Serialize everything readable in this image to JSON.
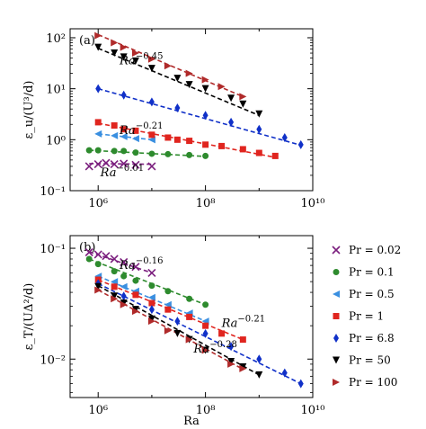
{
  "colors": {
    "Pr = 0.02": "#7b1f7e",
    "Pr = 0.1": "#2e8b2e",
    "Pr = 0.5": "#3a8fe0",
    "Pr = 1": "#e0251f",
    "Pr = 6.8": "#1030c8",
    "Pr = 50": "#000000",
    "Pr = 100": "#b02a2a"
  },
  "chart_data": [
    {
      "panel": "(a)",
      "type": "scatter",
      "ylabel": "ε_u/(U³/d)",
      "xlabel": "",
      "xscale": "log",
      "yscale": "log",
      "xlim": [
        300000,
        10000000000
      ],
      "ylim": [
        0.1,
        150
      ],
      "x_ticks": [
        "10⁶",
        "10⁸",
        "10¹⁰"
      ],
      "y_ticks": [
        "10⁻¹",
        "10⁰",
        "10¹",
        "10²"
      ],
      "annotations": [
        {
          "base": "Ra",
          "exp": "−0.45",
          "x": 2500000,
          "y": 30
        },
        {
          "base": "Ra",
          "exp": "−0.21",
          "x": 2500000,
          "y": 1.3
        },
        {
          "base": "Ra",
          "exp": "−0.01",
          "x": 1100000,
          "y": 0.19
        }
      ],
      "series": [
        {
          "name": "Pr = 0.02",
          "marker": "x",
          "x": [
            680000,
            1000000,
            1400000,
            2000000,
            3000000,
            5000000,
            10000000
          ],
          "y": [
            0.3,
            0.33,
            0.35,
            0.33,
            0.34,
            0.32,
            0.3
          ]
        },
        {
          "name": "Pr = 0.1",
          "marker": "circle",
          "x": [
            680000,
            1000000,
            2000000,
            3000000,
            5000000,
            10000000,
            20000000,
            50000000,
            100000000
          ],
          "y": [
            0.62,
            0.62,
            0.6,
            0.6,
            0.56,
            0.53,
            0.52,
            0.5,
            0.48
          ]
        },
        {
          "name": "Pr = 0.5",
          "marker": "triangle-left",
          "x": [
            1000000,
            2000000,
            3000000,
            5000000,
            10000000
          ],
          "y": [
            1.3,
            1.2,
            1.15,
            1.05,
            1.0
          ]
        },
        {
          "name": "Pr = 1",
          "marker": "square",
          "x": [
            1000000,
            2000000,
            3000000,
            5000000,
            10000000,
            20000000,
            30000000,
            50000000,
            100000000,
            200000000,
            500000000,
            1000000000,
            2000000000
          ],
          "y": [
            2.2,
            1.9,
            1.6,
            1.5,
            1.25,
            1.1,
            1.0,
            0.95,
            0.8,
            0.75,
            0.65,
            0.55,
            0.48
          ]
        },
        {
          "name": "Pr = 6.8",
          "marker": "diamond",
          "x": [
            1000000,
            3000000,
            10000000,
            30000000,
            100000000,
            300000000,
            1000000000,
            3000000000,
            6000000000
          ],
          "y": [
            10,
            7.5,
            5.5,
            4.2,
            3.0,
            2.2,
            1.6,
            1.1,
            0.8
          ]
        },
        {
          "name": "Pr = 50",
          "marker": "triangle-down",
          "x": [
            1000000,
            2000000,
            3000000,
            5000000,
            10000000,
            30000000,
            50000000,
            100000000,
            300000000,
            500000000,
            1000000000
          ],
          "y": [
            65,
            50,
            42,
            35,
            25,
            16,
            12,
            10,
            6.5,
            5,
            3.2
          ]
        },
        {
          "name": "Pr = 100",
          "marker": "triangle-right",
          "x": [
            1000000,
            2000000,
            3000000,
            5000000,
            10000000,
            20000000,
            50000000,
            100000000,
            200000000,
            500000000
          ],
          "y": [
            110,
            80,
            65,
            50,
            38,
            28,
            20,
            15,
            11,
            7
          ]
        }
      ],
      "fit_lines": [
        {
          "series": "Pr = 0.02",
          "x": [
            680000,
            10000000
          ],
          "y": [
            0.34,
            0.33
          ]
        },
        {
          "series": "Pr = 0.1",
          "x": [
            680000,
            100000000
          ],
          "y": [
            0.62,
            0.47
          ]
        },
        {
          "series": "Pr = 0.5",
          "x": [
            1000000,
            10000000
          ],
          "y": [
            1.3,
            1.0
          ]
        },
        {
          "series": "Pr = 1",
          "x": [
            1000000,
            2000000000
          ],
          "y": [
            2.1,
            0.45
          ]
        },
        {
          "series": "Pr = 6.8",
          "x": [
            1000000,
            6000000000
          ],
          "y": [
            10,
            0.78
          ]
        },
        {
          "series": "Pr = 50",
          "x": [
            1000000,
            1000000000
          ],
          "y": [
            62,
            3.0
          ]
        },
        {
          "series": "Pr = 100",
          "x": [
            1000000,
            500000000
          ],
          "y": [
            115,
            7
          ]
        }
      ]
    },
    {
      "panel": "(b)",
      "type": "scatter",
      "ylabel": "ε_T/(UΔ²/d)",
      "xlabel": "Ra",
      "xscale": "log",
      "yscale": "log",
      "xlim": [
        300000,
        10000000000
      ],
      "ylim": [
        0.0045,
        0.13
      ],
      "x_ticks": [
        "10⁶",
        "10⁸",
        "10¹⁰"
      ],
      "y_ticks": [
        "10⁻²",
        "10⁻¹"
      ],
      "annotations": [
        {
          "base": "Ra",
          "exp": "−0.16",
          "x": 2500000,
          "y": 0.065
        },
        {
          "base": "Ra",
          "exp": "−0.21",
          "x": 200000000,
          "y": 0.0195
        },
        {
          "base": "Ra",
          "exp": "−0.28",
          "x": 60000000,
          "y": 0.0115
        }
      ],
      "series": [
        {
          "name": "Pr = 0.02",
          "marker": "x",
          "x": [
            680000,
            1000000,
            1400000,
            2000000,
            3000000,
            5000000,
            10000000
          ],
          "y": [
            0.092,
            0.088,
            0.085,
            0.08,
            0.075,
            0.068,
            0.06
          ]
        },
        {
          "name": "Pr = 0.1",
          "marker": "circle",
          "x": [
            680000,
            1000000,
            2000000,
            3000000,
            5000000,
            10000000,
            20000000,
            50000000,
            100000000
          ],
          "y": [
            0.08,
            0.072,
            0.062,
            0.056,
            0.051,
            0.046,
            0.041,
            0.035,
            0.031
          ]
        },
        {
          "name": "Pr = 0.5",
          "marker": "triangle-left",
          "x": [
            1000000,
            2000000,
            3000000,
            5000000,
            10000000,
            20000000,
            50000000,
            100000000
          ],
          "y": [
            0.056,
            0.05,
            0.045,
            0.041,
            0.036,
            0.031,
            0.026,
            0.022
          ]
        },
        {
          "name": "Pr = 1",
          "marker": "square",
          "x": [
            1000000,
            2000000,
            5000000,
            10000000,
            20000000,
            50000000,
            100000000,
            200000000,
            500000000
          ],
          "y": [
            0.052,
            0.045,
            0.038,
            0.032,
            0.028,
            0.024,
            0.02,
            0.017,
            0.015
          ]
        },
        {
          "name": "Pr = 6.8",
          "marker": "diamond",
          "x": [
            1000000,
            3000000,
            10000000,
            30000000,
            100000000,
            300000000,
            1000000000,
            3000000000,
            6000000000
          ],
          "y": [
            0.048,
            0.037,
            0.028,
            0.022,
            0.017,
            0.013,
            0.01,
            0.0075,
            0.006
          ]
        },
        {
          "name": "Pr = 50",
          "marker": "triangle-down",
          "x": [
            1000000,
            2000000,
            3000000,
            5000000,
            10000000,
            30000000,
            50000000,
            100000000,
            300000000,
            500000000,
            1000000000
          ],
          "y": [
            0.045,
            0.037,
            0.032,
            0.028,
            0.023,
            0.017,
            0.015,
            0.012,
            0.0095,
            0.0085,
            0.0072
          ]
        },
        {
          "name": "Pr = 100",
          "marker": "triangle-right",
          "x": [
            1000000,
            2000000,
            3000000,
            5000000,
            10000000,
            20000000,
            50000000,
            100000000,
            300000000,
            500000000
          ],
          "y": [
            0.042,
            0.035,
            0.031,
            0.027,
            0.022,
            0.018,
            0.015,
            0.012,
            0.009,
            0.0082
          ]
        }
      ],
      "fit_lines": [
        {
          "series": "Pr = 0.02",
          "x": [
            680000,
            10000000
          ],
          "y": [
            0.093,
            0.06
          ]
        },
        {
          "series": "Pr = 0.1",
          "x": [
            680000,
            100000000
          ],
          "y": [
            0.08,
            0.031
          ]
        },
        {
          "series": "Pr = 0.5",
          "x": [
            1000000,
            100000000
          ],
          "y": [
            0.056,
            0.022
          ]
        },
        {
          "series": "Pr = 1",
          "x": [
            1000000,
            500000000
          ],
          "y": [
            0.052,
            0.015
          ]
        },
        {
          "series": "Pr = 6.8",
          "x": [
            1000000,
            6000000000
          ],
          "y": [
            0.048,
            0.006
          ]
        },
        {
          "series": "Pr = 50",
          "x": [
            1000000,
            1000000000
          ],
          "y": [
            0.046,
            0.0072
          ]
        },
        {
          "series": "Pr = 100",
          "x": [
            1000000,
            500000000
          ],
          "y": [
            0.042,
            0.0081
          ]
        }
      ]
    }
  ],
  "legend": {
    "placement": "right of panel (b)",
    "entries": [
      {
        "label": "Pr = 0.02",
        "marker": "x"
      },
      {
        "label": "Pr = 0.1",
        "marker": "circle"
      },
      {
        "label": "Pr = 0.5",
        "marker": "triangle-left"
      },
      {
        "label": "Pr = 1",
        "marker": "square"
      },
      {
        "label": "Pr = 6.8",
        "marker": "diamond"
      },
      {
        "label": "Pr = 50",
        "marker": "triangle-down"
      },
      {
        "label": "Pr = 100",
        "marker": "triangle-right"
      }
    ]
  }
}
